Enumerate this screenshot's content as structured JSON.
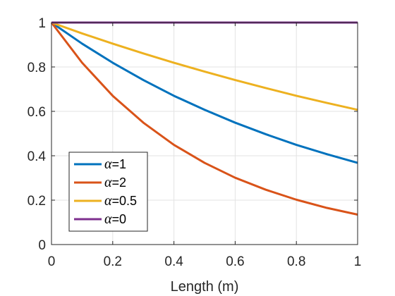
{
  "chart_data": {
    "type": "line",
    "title": "",
    "xlabel": "Length (m)",
    "ylabel": "",
    "xlim": [
      0,
      1
    ],
    "ylim": [
      0,
      1
    ],
    "xticks": [
      0,
      0.2,
      0.4,
      0.6,
      0.8,
      1
    ],
    "xtick_labels": [
      "0",
      "0.2",
      "0.4",
      "0.6",
      "0.8",
      "1"
    ],
    "yticks": [
      0,
      0.2,
      0.4,
      0.6,
      0.8,
      1
    ],
    "ytick_labels": [
      "0",
      "0.2",
      "0.4",
      "0.6",
      "0.8",
      "1"
    ],
    "grid": true,
    "legend_position": "bottom-left",
    "x": [
      0,
      0.1,
      0.2,
      0.3,
      0.4,
      0.5,
      0.6,
      0.7,
      0.8,
      0.9,
      1.0
    ],
    "series": [
      {
        "name": "α=1",
        "alpha_symbol": "α",
        "label_suffix": "=1",
        "color": "#0072BD",
        "values": [
          1.0,
          0.905,
          0.819,
          0.741,
          0.67,
          0.607,
          0.549,
          0.497,
          0.449,
          0.407,
          0.368
        ]
      },
      {
        "name": "α=2",
        "alpha_symbol": "α",
        "label_suffix": "=2",
        "color": "#D95319",
        "values": [
          1.0,
          0.819,
          0.67,
          0.549,
          0.449,
          0.368,
          0.301,
          0.247,
          0.202,
          0.165,
          0.135
        ]
      },
      {
        "name": "α=0.5",
        "alpha_symbol": "α",
        "label_suffix": "=0.5",
        "color": "#EDB120",
        "values": [
          1.0,
          0.951,
          0.905,
          0.861,
          0.819,
          0.779,
          0.741,
          0.705,
          0.67,
          0.638,
          0.607
        ]
      },
      {
        "name": "α=0",
        "alpha_symbol": "α",
        "label_suffix": "=0",
        "color": "#7E2F8E",
        "values": [
          1.0,
          1.0,
          1.0,
          1.0,
          1.0,
          1.0,
          1.0,
          1.0,
          1.0,
          1.0,
          1.0
        ]
      }
    ]
  }
}
